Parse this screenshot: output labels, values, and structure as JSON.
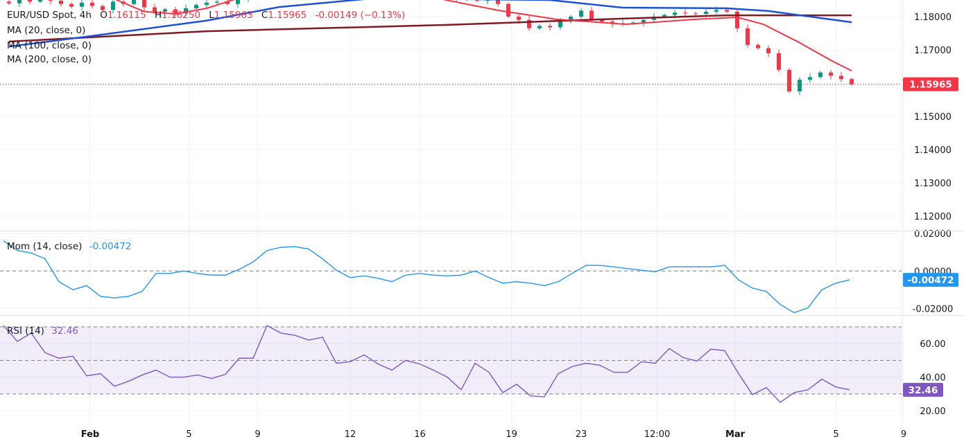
{
  "header": {
    "symbol": "EUR/USD Spot, 4h",
    "o_label": "O",
    "o_value": "1.16115",
    "h_label": "H",
    "h_value": "1.16250",
    "l_label": "L",
    "l_value": "1.15963",
    "c_label": "C",
    "c_value": "1.15965",
    "change": "-0.00149 (−0.13%)"
  },
  "indicators": {
    "ma20": "MA (20, close, 0)",
    "ma100": "MA (100, close, 0)",
    "ma200": "MA (200, close, 0)",
    "mom_label": "Mom (14, close)",
    "mom_value": "-0.00472",
    "rsi_label": "RSI (14)",
    "rsi_value": "32.46"
  },
  "colors": {
    "up": "#089981",
    "down": "#f23645",
    "ma20": "#f23645",
    "ma100": "#1e4fd8",
    "ma200": "#801922",
    "mom": "#2196f3",
    "rsi": "#7e57c2",
    "grid": "#f0f3fa"
  },
  "chart_data": {
    "type": "line",
    "title": "EUR/USD Spot, 4h",
    "price": {
      "ylim": [
        1.113,
        1.1895
      ],
      "y_ticks": [
        "1.18000",
        "1.17000",
        "1.15000",
        "1.14000",
        "1.13000",
        "1.12000"
      ],
      "last_price_label": "1.15965",
      "last_price": 1.15965,
      "closes": [
        1.184,
        1.185,
        1.1845,
        1.1855,
        1.1848,
        1.1838,
        1.183,
        1.1842,
        1.1832,
        1.182,
        1.1845,
        1.1838,
        1.185,
        1.1828,
        1.1815,
        1.1822,
        1.181,
        1.1825,
        1.1835,
        1.1842,
        1.1845,
        1.1838,
        1.1852,
        1.186,
        1.1885,
        1.1895,
        1.191,
        1.1905,
        1.192,
        1.1915,
        1.19,
        1.189,
        1.188,
        1.1895,
        1.1905,
        1.1898,
        1.1885,
        1.1892,
        1.188,
        1.1875,
        1.1885,
        1.1878,
        1.187,
        1.1855,
        1.1862,
        1.1848,
        1.1852,
        1.1838,
        1.18,
        1.179,
        1.1765,
        1.1772,
        1.1768,
        1.1785,
        1.18,
        1.1818,
        1.179,
        1.1785,
        1.1778,
        1.178,
        1.1782,
        1.179,
        1.18,
        1.1805,
        1.1812,
        1.181,
        1.1808,
        1.1815,
        1.182,
        1.1815,
        1.1765,
        1.1715,
        1.1705,
        1.169,
        1.164,
        1.1575,
        1.161,
        1.1618,
        1.1632,
        1.1622,
        1.1612,
        1.15965
      ],
      "ma20": [
        [
          0,
          1.188
        ],
        [
          10,
          1.1855
        ],
        [
          13,
          1.1815
        ],
        [
          16,
          1.1808
        ],
        [
          19,
          1.1825
        ],
        [
          22,
          1.1855
        ],
        [
          30,
          1.189
        ],
        [
          38,
          1.1885
        ],
        [
          42,
          1.185
        ],
        [
          47,
          1.1819
        ],
        [
          52.6,
          1.1792
        ],
        [
          59.3,
          1.1777
        ],
        [
          66,
          1.1792
        ],
        [
          70,
          1.1798
        ],
        [
          72.5,
          1.1777
        ],
        [
          75.8,
          1.1725
        ],
        [
          79.1,
          1.1667
        ],
        [
          81,
          1.1637
        ]
      ],
      "ma100": [
        [
          0,
          1.171
        ],
        [
          8,
          1.1742
        ],
        [
          19,
          1.1788
        ],
        [
          26,
          1.1829
        ],
        [
          35,
          1.1855
        ],
        [
          52,
          1.185
        ],
        [
          59,
          1.1827
        ],
        [
          69,
          1.1825
        ],
        [
          73,
          1.1817
        ],
        [
          81,
          1.1783
        ]
      ],
      "ma200": [
        [
          0,
          1.1725
        ],
        [
          19,
          1.1756
        ],
        [
          42,
          1.1775
        ],
        [
          59,
          1.1794
        ],
        [
          69,
          1.1804
        ],
        [
          81,
          1.1804
        ]
      ]
    },
    "momentum": {
      "ylim": [
        -0.0235,
        0.0215
      ],
      "y_ticks": [
        "0.02000",
        "0.00000",
        "-0.02000"
      ],
      "zero_line": 0,
      "values": [
        0.0161,
        0.0109,
        0.0096,
        0.0065,
        -0.0057,
        -0.01,
        -0.0078,
        -0.0135,
        -0.0143,
        -0.0135,
        -0.0109,
        -0.0013,
        -0.0013,
        0.0,
        -0.0013,
        -0.0022,
        -0.0022,
        0.0009,
        0.0048,
        0.0109,
        0.0126,
        0.013,
        0.0117,
        0.0065,
        0.0004,
        -0.0035,
        -0.0026,
        -0.0039,
        -0.0057,
        -0.0022,
        -0.0013,
        -0.0022,
        -0.0026,
        -0.0022,
        0.0,
        -0.0035,
        -0.0065,
        -0.0057,
        -0.0065,
        -0.0078,
        -0.0057,
        -0.0013,
        0.003,
        0.003,
        0.0022,
        0.0013,
        0.0004,
        -0.0004,
        0.0022,
        0.0022,
        0.0022,
        0.0022,
        0.003,
        -0.0048,
        -0.0091,
        -0.0109,
        -0.0178,
        -0.0222,
        -0.0196,
        -0.01,
        -0.0065,
        -0.00472
      ]
    },
    "rsi": {
      "ylim": [
        13,
        77
      ],
      "y_ticks": [
        "60.00",
        "40.00",
        "20.00"
      ],
      "levels": [
        70,
        50,
        30
      ],
      "values": [
        70.8,
        61.3,
        66.3,
        54.6,
        51.3,
        52.5,
        40.8,
        42.1,
        34.6,
        37.5,
        41.3,
        44.2,
        40.0,
        40.0,
        41.3,
        39.2,
        41.7,
        51.3,
        51.3,
        70.8,
        66.3,
        65.0,
        62.1,
        63.8,
        48.3,
        49.2,
        53.3,
        47.9,
        44.2,
        50.0,
        47.9,
        44.2,
        40.0,
        32.5,
        48.3,
        42.9,
        30.8,
        35.8,
        28.8,
        28.3,
        42.1,
        46.3,
        48.3,
        47.1,
        42.9,
        42.9,
        49.2,
        48.3,
        57.1,
        51.7,
        49.6,
        56.7,
        55.8,
        42.1,
        29.6,
        33.8,
        25.0,
        30.8,
        32.5,
        38.8,
        34.2,
        32.46
      ]
    },
    "x_ticks": [
      {
        "label": "Feb",
        "index": 7.8
      },
      {
        "label": "5",
        "index": 17.3
      },
      {
        "label": "9",
        "index": 23.9
      },
      {
        "label": "12",
        "index": 32.8
      },
      {
        "label": "16",
        "index": 39.5
      },
      {
        "label": "19",
        "index": 48.3
      },
      {
        "label": "23",
        "index": 55
      },
      {
        "label": "12:00",
        "index": 62.3
      },
      {
        "label": "Mar",
        "index": 69.8
      },
      {
        "label": "5",
        "index": 79.5
      },
      {
        "label": "9",
        "index": 86
      }
    ]
  }
}
